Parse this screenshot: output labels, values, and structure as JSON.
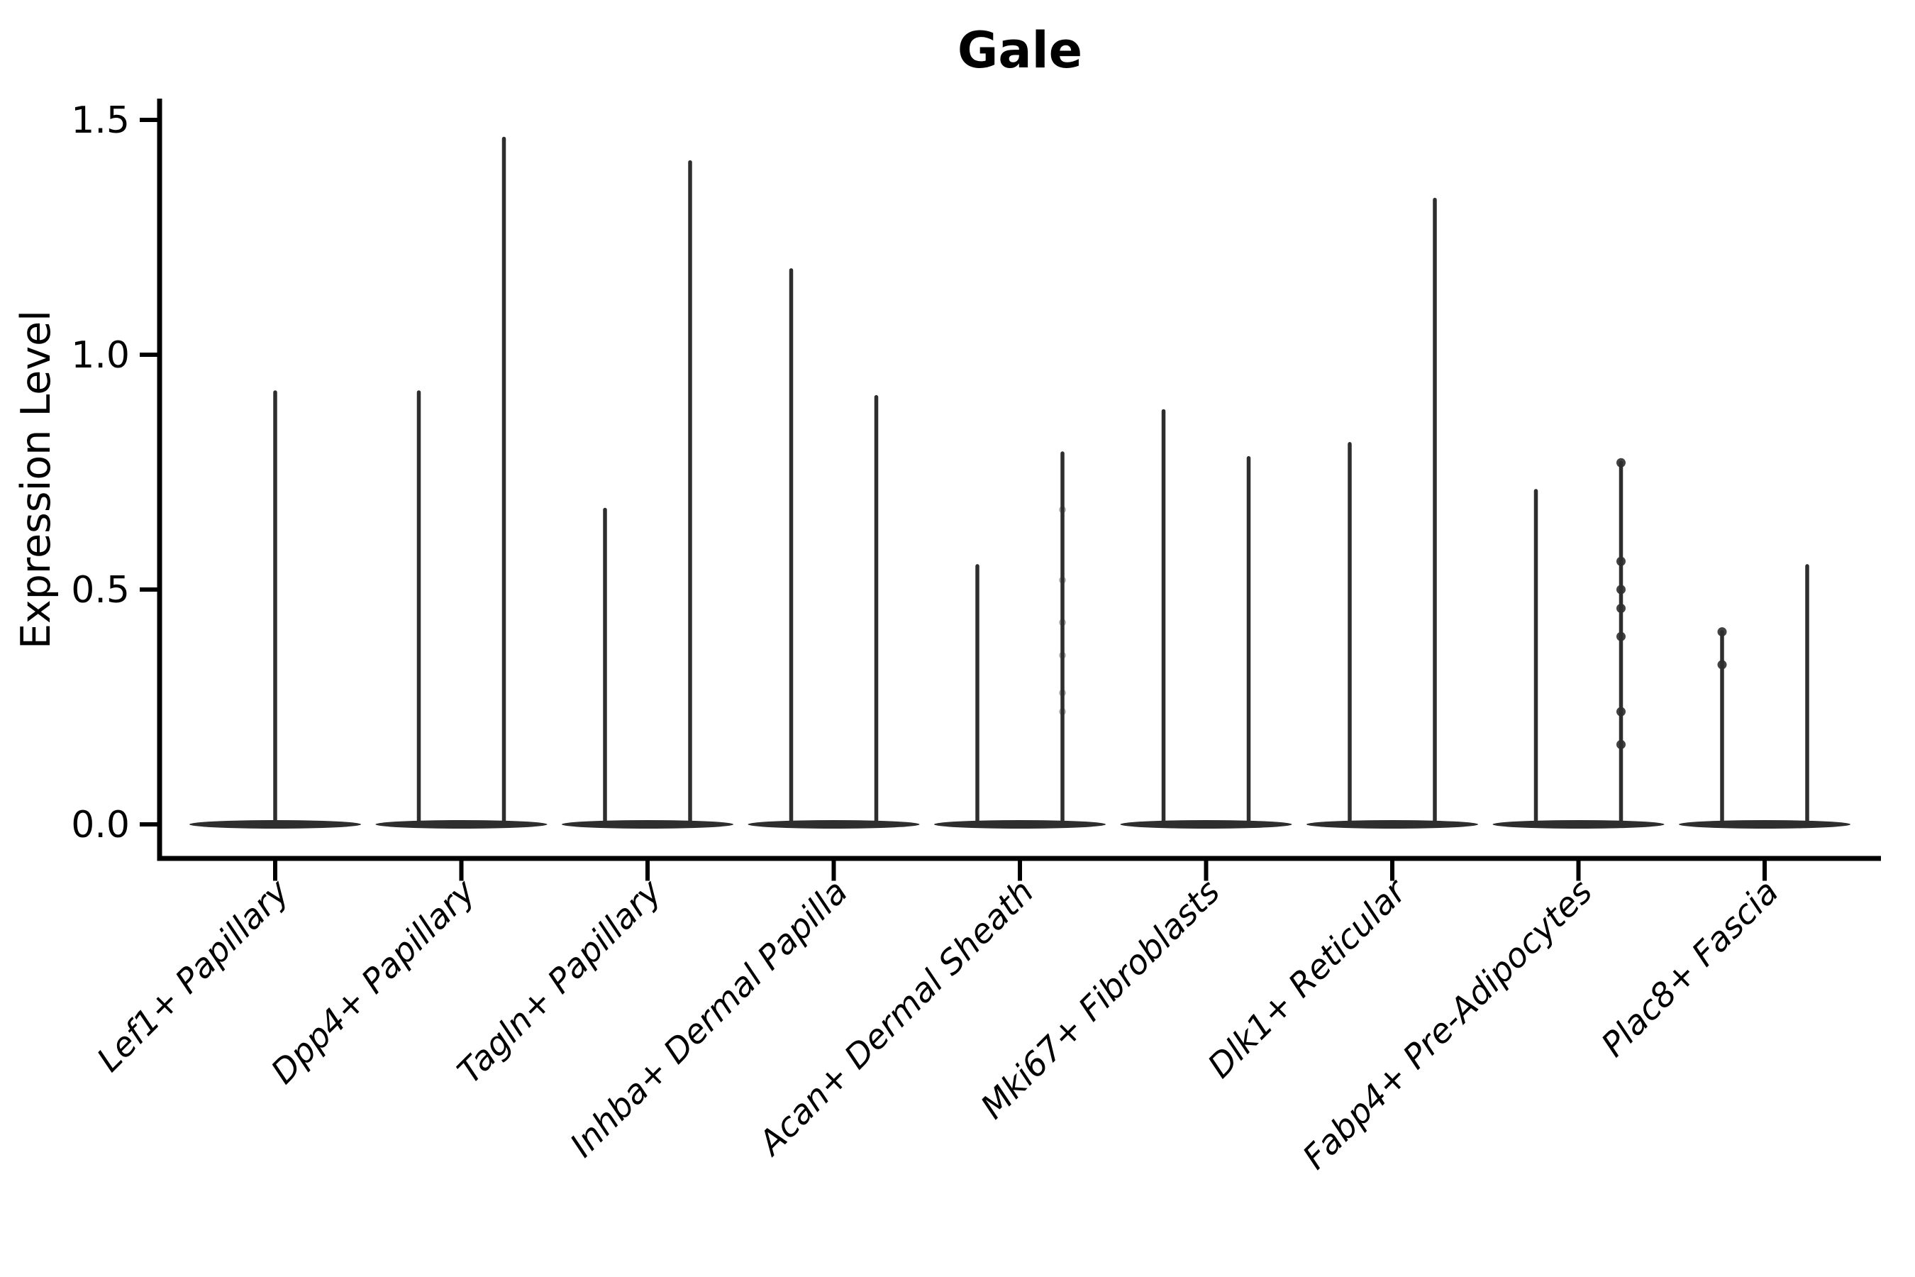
{
  "figure": {
    "background": "#ffffff"
  },
  "chart_data": {
    "type": "violin",
    "title": "Gale",
    "xlabel": "",
    "ylabel": "Expression Level",
    "ylim": [
      0,
      1.55
    ],
    "ytick_values": [
      0.0,
      0.5,
      1.0,
      1.5
    ],
    "ytick_labels": [
      "0.0",
      "0.5",
      "1.0",
      "1.5"
    ],
    "grid": false,
    "legend_position": "none",
    "x_label_rotation_deg": 45,
    "x_label_style": "italic",
    "colors": {
      "violin": "#2e2e2e",
      "axis": "#000000",
      "text": "#000000",
      "background": "#ffffff"
    },
    "description": "Violin plot of Gale expression per fibroblast cluster; each violin is a thin spike rising from a flat dense base at expression 0 to the cluster maximum. Most categories contain two side-by-side violins (split groups); the first category has a single centered violin.",
    "categories": [
      "Lef1+ Papillary",
      "Dpp4+ Papillary",
      "Tagln+ Papillary",
      "Inhba+ Dermal Papilla",
      "Acan+ Dermal Sheath",
      "Mki67+ Fibroblasts",
      "Dlk1+ Reticular",
      "Fabp4+ Pre-Adipocytes",
      "Plac8+ Fascia"
    ],
    "series": [
      {
        "category": "Lef1+ Papillary",
        "violins": [
          {
            "position": "center",
            "max": 0.92,
            "min": 0.0,
            "dots": [],
            "faint_dots": []
          }
        ]
      },
      {
        "category": "Dpp4+ Papillary",
        "violins": [
          {
            "position": "left",
            "max": 0.92,
            "min": 0.0,
            "dots": [],
            "faint_dots": []
          },
          {
            "position": "right",
            "max": 1.46,
            "min": 0.0,
            "dots": [],
            "faint_dots": []
          }
        ]
      },
      {
        "category": "Tagln+ Papillary",
        "violins": [
          {
            "position": "left",
            "max": 0.67,
            "min": 0.0,
            "dots": [],
            "faint_dots": []
          },
          {
            "position": "right",
            "max": 1.41,
            "min": 0.0,
            "dots": [],
            "faint_dots": []
          }
        ]
      },
      {
        "category": "Inhba+ Dermal Papilla",
        "violins": [
          {
            "position": "left",
            "max": 1.18,
            "min": 0.0,
            "dots": [],
            "faint_dots": []
          },
          {
            "position": "right",
            "max": 0.91,
            "min": 0.0,
            "dots": [],
            "faint_dots": []
          }
        ]
      },
      {
        "category": "Acan+ Dermal Sheath",
        "violins": [
          {
            "position": "left",
            "max": 0.55,
            "min": 0.0,
            "dots": [],
            "faint_dots": []
          },
          {
            "position": "right",
            "max": 0.79,
            "min": 0.0,
            "dots": [],
            "faint_dots": [
              0.67,
              0.52,
              0.43,
              0.36,
              0.28,
              0.24
            ]
          }
        ]
      },
      {
        "category": "Mki67+ Fibroblasts",
        "violins": [
          {
            "position": "left",
            "max": 0.88,
            "min": 0.0,
            "dots": [],
            "faint_dots": []
          },
          {
            "position": "right",
            "max": 0.78,
            "min": 0.0,
            "dots": [],
            "faint_dots": []
          }
        ]
      },
      {
        "category": "Dlk1+ Reticular",
        "violins": [
          {
            "position": "left",
            "max": 0.81,
            "min": 0.0,
            "dots": [],
            "faint_dots": []
          },
          {
            "position": "right",
            "max": 1.33,
            "min": 0.0,
            "dots": [],
            "faint_dots": []
          }
        ]
      },
      {
        "category": "Fabp4+ Pre-Adipocytes",
        "violins": [
          {
            "position": "left",
            "max": 0.71,
            "min": 0.0,
            "dots": [],
            "faint_dots": []
          },
          {
            "position": "right",
            "max": 0.77,
            "min": 0.0,
            "dots": [
              0.77,
              0.56,
              0.5,
              0.46,
              0.4,
              0.24,
              0.17
            ],
            "faint_dots": []
          }
        ]
      },
      {
        "category": "Plac8+ Fascia",
        "violins": [
          {
            "position": "left",
            "max": 0.41,
            "min": 0.0,
            "dots": [
              0.41,
              0.34
            ],
            "faint_dots": []
          },
          {
            "position": "right",
            "max": 0.55,
            "min": 0.0,
            "dots": [],
            "faint_dots": []
          }
        ]
      }
    ]
  }
}
